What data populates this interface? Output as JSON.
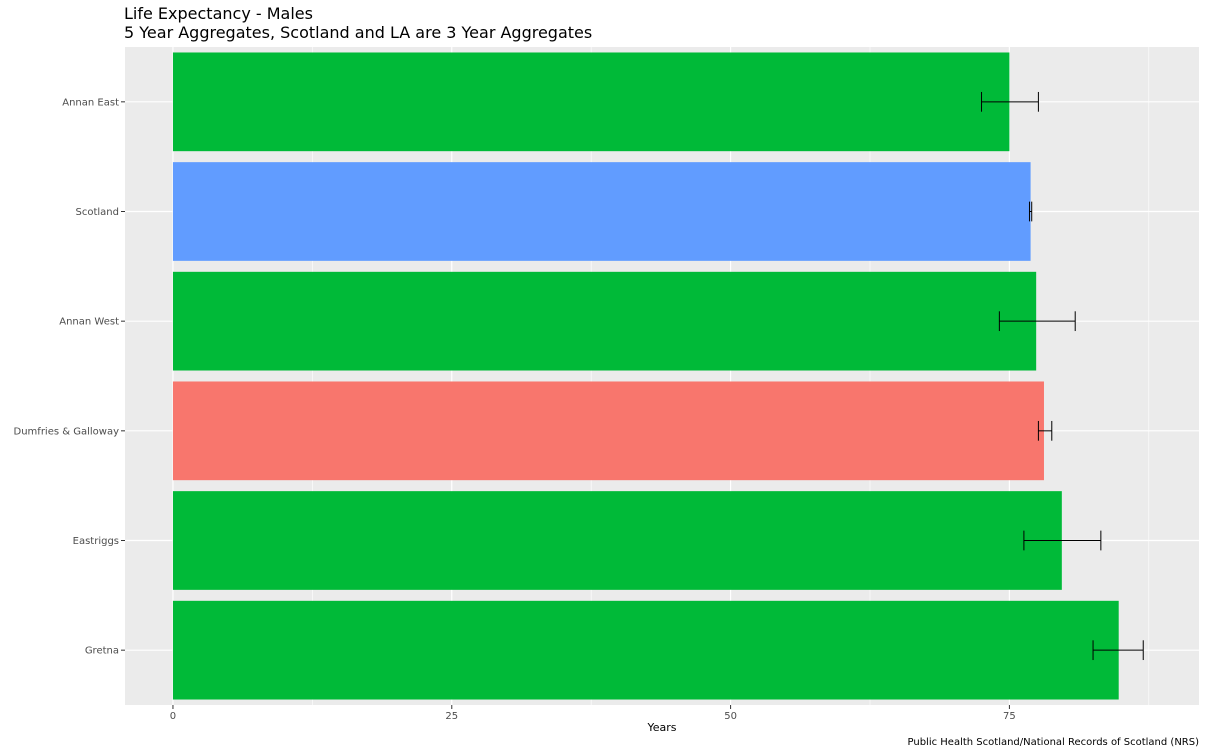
{
  "chart_data": {
    "type": "bar",
    "orientation": "horizontal",
    "title": "Life Expectancy - Males",
    "subtitle": "5 Year Aggregates, Scotland and LA are 3 Year Aggregates",
    "xlabel": "Years",
    "ylabel": "",
    "caption": "Public Health Scotland/National Records of Scotland (NRS)",
    "xlim": [
      -4.3,
      92.0
    ],
    "x_ticks": [
      0,
      25,
      50,
      75
    ],
    "grid": true,
    "categories": [
      "Annan East",
      "Scotland",
      "Annan West",
      "Dumfries & Galloway",
      "Eastriggs",
      "Gretna"
    ],
    "values": [
      75.0,
      76.9,
      77.4,
      78.1,
      79.7,
      84.8
    ],
    "ci_lower": [
      72.5,
      76.8,
      74.1,
      77.6,
      76.3,
      82.5
    ],
    "ci_upper": [
      77.6,
      77.0,
      80.9,
      78.8,
      83.2,
      87.0
    ],
    "colors": [
      "#00BA38",
      "#619CFF",
      "#00BA38",
      "#F8766D",
      "#00BA38",
      "#00BA38"
    ],
    "panel_background": "#EBEBEB",
    "grid_color": "#FFFFFF",
    "errorbar_color": "#000000"
  }
}
